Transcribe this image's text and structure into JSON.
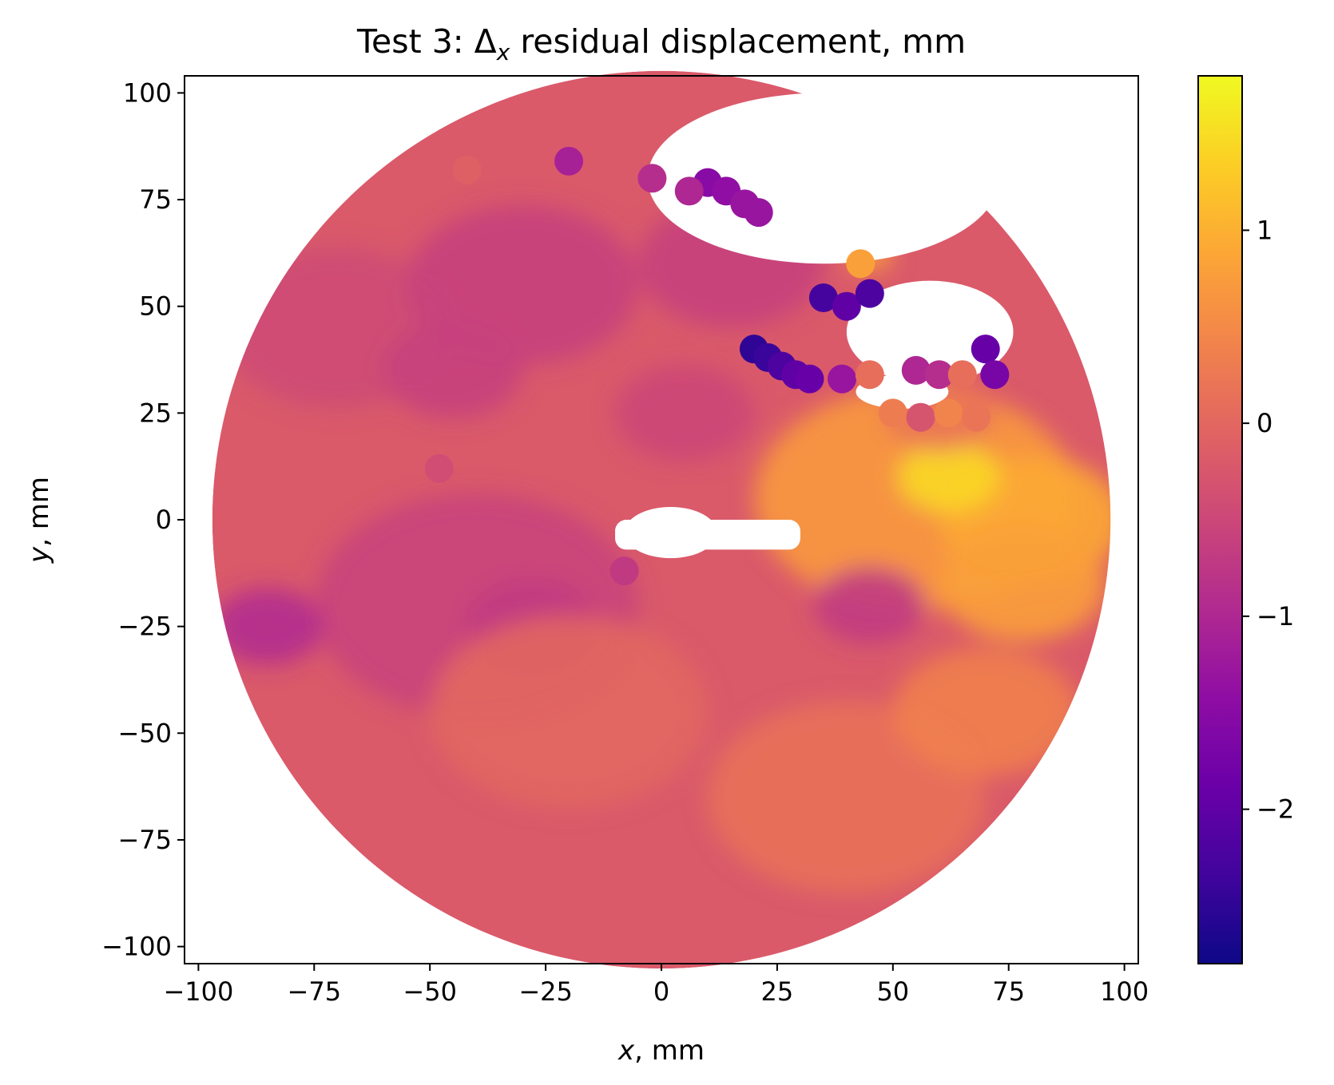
{
  "chart_data": {
    "type": "scatter",
    "title": {
      "prefix": "Test 3: Δ",
      "subscript": "x",
      "suffix": " residual displacement, mm"
    },
    "xlabel": {
      "var": "x",
      "unit": ", mm"
    },
    "ylabel": {
      "var": "y",
      "unit": ", mm"
    },
    "xlim": [
      -103,
      103
    ],
    "ylim": [
      -104,
      104
    ],
    "xticks": [
      -100,
      -75,
      -50,
      -25,
      0,
      25,
      50,
      75,
      100
    ],
    "xtick_labels": [
      "−100",
      "−75",
      "−50",
      "−25",
      "0",
      "25",
      "50",
      "75",
      "100"
    ],
    "yticks": [
      100,
      75,
      50,
      25,
      0,
      -25,
      -50,
      -75,
      -100
    ],
    "ytick_labels": [
      "100",
      "75",
      "50",
      "25",
      "0",
      "−25",
      "−50",
      "−75",
      "−100"
    ],
    "colorbar": {
      "colormap": "plasma",
      "range": [
        -2.8,
        1.8
      ],
      "ticks": [
        1,
        0,
        -1,
        -2
      ],
      "tick_labels": [
        "1",
        "0",
        "−1",
        "−2"
      ]
    },
    "grid": false,
    "legend": "none",
    "specimen": {
      "shape": "disc",
      "radius_mm": 97,
      "background_value": -0.2,
      "notes_visible": false
    },
    "value_regions": [
      {
        "x": -70,
        "y": 45,
        "r": 25,
        "value": -0.45
      },
      {
        "x": -45,
        "y": 35,
        "r": 15,
        "value": -0.6
      },
      {
        "x": -30,
        "y": 55,
        "r": 25,
        "value": -0.6
      },
      {
        "x": -40,
        "y": -20,
        "r": 35,
        "value": -0.55
      },
      {
        "x": -85,
        "y": -25,
        "r": 12,
        "value": -0.95
      },
      {
        "x": -28,
        "y": -25,
        "r": 14,
        "value": -0.7
      },
      {
        "x": 5,
        "y": 25,
        "r": 15,
        "value": -0.5
      },
      {
        "x": 15,
        "y": 60,
        "r": 20,
        "value": -0.6
      },
      {
        "x": 55,
        "y": 5,
        "r": 35,
        "value": 0.7
      },
      {
        "x": 80,
        "y": 0,
        "r": 20,
        "value": 0.9
      },
      {
        "x": 62,
        "y": 10,
        "r": 11,
        "value": 1.45
      },
      {
        "x": 78,
        "y": -15,
        "r": 18,
        "value": 0.8
      },
      {
        "x": 40,
        "y": -65,
        "r": 30,
        "value": 0.15
      },
      {
        "x": 70,
        "y": -45,
        "r": 20,
        "value": 0.35
      },
      {
        "x": -20,
        "y": -45,
        "r": 30,
        "value": 0.0
      },
      {
        "x": 45,
        "y": -20,
        "r": 12,
        "value": -0.7
      },
      {
        "x": 60,
        "y": 25,
        "r": 12,
        "value": 0.2
      },
      {
        "x": 45,
        "y": 62,
        "r": 5,
        "value": 0.8
      }
    ],
    "gaps": [
      {
        "shape": "rect",
        "x": [
          -10,
          30
        ],
        "y": [
          -7,
          0
        ]
      },
      {
        "shape": "ellipse",
        "cx": 2,
        "cy": -3,
        "rx": 10,
        "ry": 6
      },
      {
        "shape": "ellipse",
        "cx": 58,
        "cy": 44,
        "rx": 18,
        "ry": 12
      },
      {
        "shape": "ellipse",
        "cx": 52,
        "cy": 30,
        "rx": 10,
        "ry": 4
      },
      {
        "shape": "ellipse",
        "cx": 35,
        "cy": 80,
        "rx": 38,
        "ry": 20
      }
    ],
    "outlier_markers": [
      {
        "x": 20,
        "y": 40,
        "value": -2.5
      },
      {
        "x": 23,
        "y": 38,
        "value": -2.4
      },
      {
        "x": 26,
        "y": 36,
        "value": -2.2
      },
      {
        "x": 29,
        "y": 34,
        "value": -2.0
      },
      {
        "x": 32,
        "y": 33,
        "value": -1.9
      },
      {
        "x": 35,
        "y": 52,
        "value": -2.3
      },
      {
        "x": 40,
        "y": 50,
        "value": -2.0
      },
      {
        "x": 45,
        "y": 53,
        "value": -2.2
      },
      {
        "x": 70,
        "y": 40,
        "value": -1.9
      },
      {
        "x": 72,
        "y": 34,
        "value": -1.7
      },
      {
        "x": 39,
        "y": 33,
        "value": -1.3
      },
      {
        "x": 45,
        "y": 34,
        "value": 0.1
      },
      {
        "x": 55,
        "y": 35,
        "value": -1.0
      },
      {
        "x": 60,
        "y": 34,
        "value": -0.9
      },
      {
        "x": 65,
        "y": 34,
        "value": 0.1
      },
      {
        "x": 50,
        "y": 25,
        "value": 0.3
      },
      {
        "x": 56,
        "y": 24,
        "value": -0.3
      },
      {
        "x": 62,
        "y": 25,
        "value": 0.4
      },
      {
        "x": 68,
        "y": 24,
        "value": 0.2
      },
      {
        "x": 43,
        "y": 60,
        "value": 0.8
      },
      {
        "x": 10,
        "y": 79,
        "value": -1.5
      },
      {
        "x": 14,
        "y": 77,
        "value": -1.4
      },
      {
        "x": 18,
        "y": 74,
        "value": -1.3
      },
      {
        "x": 6,
        "y": 77,
        "value": -1.0
      },
      {
        "x": 21,
        "y": 72,
        "value": -1.3
      },
      {
        "x": -20,
        "y": 84,
        "value": -1.1
      },
      {
        "x": -2,
        "y": 80,
        "value": -0.9
      },
      {
        "x": -42,
        "y": 82,
        "value": -0.1
      },
      {
        "x": -8,
        "y": -12,
        "value": -0.7
      },
      {
        "x": -48,
        "y": 12,
        "value": -0.4
      }
    ]
  }
}
